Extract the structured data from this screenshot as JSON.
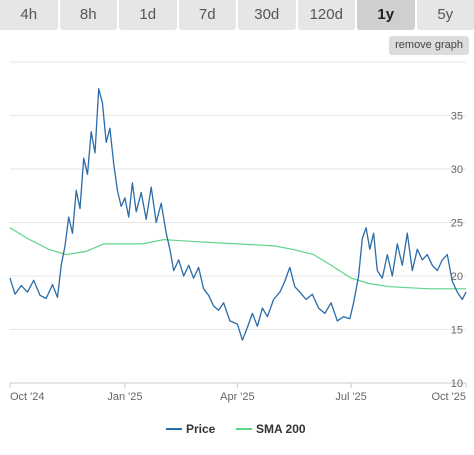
{
  "tabs": [
    {
      "label": "4h",
      "active": false
    },
    {
      "label": "8h",
      "active": false
    },
    {
      "label": "1d",
      "active": false
    },
    {
      "label": "7d",
      "active": false
    },
    {
      "label": "30d",
      "active": false
    },
    {
      "label": "120d",
      "active": false
    },
    {
      "label": "1y",
      "active": true
    },
    {
      "label": "5y",
      "active": false
    }
  ],
  "remove_graph_label": "remove graph",
  "colors": {
    "price": "#2a6ba8",
    "sma": "#5fd48a",
    "grid": "#e6e6e6",
    "axis": "#cccccc"
  },
  "chart_data": {
    "type": "line",
    "title": "",
    "xlabel": "",
    "ylabel": "",
    "ylim": [
      10,
      40
    ],
    "y_ticks": [
      10,
      15,
      20,
      25,
      30,
      35
    ],
    "x_ticks": [
      {
        "label": "Oct '24",
        "date": "2024-10-01"
      },
      {
        "label": "Jan '25",
        "date": "2025-01-01"
      },
      {
        "label": "Apr '25",
        "date": "2025-04-01"
      },
      {
        "label": "Jul '25",
        "date": "2025-07-01"
      },
      {
        "label": "Oct '25",
        "date": "2025-10-01"
      }
    ],
    "x_range": [
      "2024-10-01",
      "2025-10-01"
    ],
    "grid": true,
    "legend_position": "bottom-center",
    "series": [
      {
        "name": "Price",
        "points": [
          [
            "2024-10-01",
            19.8
          ],
          [
            "2024-10-05",
            18.3
          ],
          [
            "2024-10-10",
            19.1
          ],
          [
            "2024-10-15",
            18.5
          ],
          [
            "2024-10-20",
            19.6
          ],
          [
            "2024-10-25",
            18.2
          ],
          [
            "2024-10-30",
            17.9
          ],
          [
            "2024-11-04",
            19.2
          ],
          [
            "2024-11-08",
            18.0
          ],
          [
            "2024-11-11",
            21.0
          ],
          [
            "2024-11-14",
            22.8
          ],
          [
            "2024-11-17",
            25.5
          ],
          [
            "2024-11-20",
            24.0
          ],
          [
            "2024-11-23",
            28.0
          ],
          [
            "2024-11-26",
            26.3
          ],
          [
            "2024-11-29",
            31.0
          ],
          [
            "2024-12-02",
            29.5
          ],
          [
            "2024-12-05",
            33.5
          ],
          [
            "2024-12-08",
            31.5
          ],
          [
            "2024-12-11",
            37.5
          ],
          [
            "2024-12-14",
            36.2
          ],
          [
            "2024-12-17",
            32.5
          ],
          [
            "2024-12-20",
            33.8
          ],
          [
            "2024-12-23",
            30.5
          ],
          [
            "2024-12-26",
            28.0
          ],
          [
            "2024-12-29",
            26.5
          ],
          [
            "2025-01-01",
            27.3
          ],
          [
            "2025-01-04",
            25.5
          ],
          [
            "2025-01-07",
            28.7
          ],
          [
            "2025-01-10",
            26.0
          ],
          [
            "2025-01-14",
            27.8
          ],
          [
            "2025-01-18",
            25.3
          ],
          [
            "2025-01-22",
            28.3
          ],
          [
            "2025-01-26",
            25.0
          ],
          [
            "2025-01-30",
            26.8
          ],
          [
            "2025-02-03",
            24.0
          ],
          [
            "2025-02-06",
            22.5
          ],
          [
            "2025-02-09",
            20.5
          ],
          [
            "2025-02-13",
            21.5
          ],
          [
            "2025-02-17",
            20.0
          ],
          [
            "2025-02-21",
            21.0
          ],
          [
            "2025-02-25",
            19.8
          ],
          [
            "2025-03-01",
            20.8
          ],
          [
            "2025-03-05",
            18.8
          ],
          [
            "2025-03-09",
            18.2
          ],
          [
            "2025-03-13",
            17.2
          ],
          [
            "2025-03-17",
            16.8
          ],
          [
            "2025-03-21",
            17.5
          ],
          [
            "2025-03-26",
            15.8
          ],
          [
            "2025-04-01",
            15.5
          ],
          [
            "2025-04-05",
            14.0
          ],
          [
            "2025-04-09",
            15.2
          ],
          [
            "2025-04-13",
            16.5
          ],
          [
            "2025-04-17",
            15.3
          ],
          [
            "2025-04-21",
            17.0
          ],
          [
            "2025-04-25",
            16.2
          ],
          [
            "2025-04-30",
            17.8
          ],
          [
            "2025-05-05",
            18.5
          ],
          [
            "2025-05-09",
            19.5
          ],
          [
            "2025-05-13",
            20.8
          ],
          [
            "2025-05-17",
            19.0
          ],
          [
            "2025-05-21",
            18.5
          ],
          [
            "2025-05-26",
            17.8
          ],
          [
            "2025-05-31",
            18.3
          ],
          [
            "2025-06-05",
            17.0
          ],
          [
            "2025-06-10",
            16.5
          ],
          [
            "2025-06-15",
            17.5
          ],
          [
            "2025-06-20",
            15.8
          ],
          [
            "2025-06-25",
            16.2
          ],
          [
            "2025-06-30",
            16.0
          ],
          [
            "2025-07-03",
            17.5
          ],
          [
            "2025-07-07",
            20.0
          ],
          [
            "2025-07-10",
            23.5
          ],
          [
            "2025-07-13",
            24.5
          ],
          [
            "2025-07-16",
            22.5
          ],
          [
            "2025-07-19",
            24.0
          ],
          [
            "2025-07-22",
            20.5
          ],
          [
            "2025-07-26",
            19.8
          ],
          [
            "2025-07-30",
            22.0
          ],
          [
            "2025-08-03",
            20.0
          ],
          [
            "2025-08-07",
            23.0
          ],
          [
            "2025-08-11",
            21.0
          ],
          [
            "2025-08-15",
            24.0
          ],
          [
            "2025-08-19",
            20.5
          ],
          [
            "2025-08-23",
            22.5
          ],
          [
            "2025-08-27",
            21.5
          ],
          [
            "2025-08-31",
            22.0
          ],
          [
            "2025-09-04",
            21.0
          ],
          [
            "2025-09-08",
            20.5
          ],
          [
            "2025-09-12",
            21.5
          ],
          [
            "2025-09-16",
            22.0
          ],
          [
            "2025-09-20",
            19.5
          ],
          [
            "2025-09-24",
            18.5
          ],
          [
            "2025-09-28",
            17.8
          ],
          [
            "2025-10-01",
            18.5
          ]
        ]
      },
      {
        "name": "SMA 200",
        "points": [
          [
            "2024-10-01",
            24.5
          ],
          [
            "2024-10-15",
            23.5
          ],
          [
            "2024-11-01",
            22.5
          ],
          [
            "2024-11-15",
            22.0
          ],
          [
            "2024-12-01",
            22.3
          ],
          [
            "2024-12-15",
            23.0
          ],
          [
            "2025-01-01",
            23.0
          ],
          [
            "2025-01-15",
            23.0
          ],
          [
            "2025-02-01",
            23.4
          ],
          [
            "2025-02-15",
            23.3
          ],
          [
            "2025-03-01",
            23.2
          ],
          [
            "2025-04-01",
            23.0
          ],
          [
            "2025-05-01",
            22.8
          ],
          [
            "2025-05-15",
            22.5
          ],
          [
            "2025-06-01",
            22.0
          ],
          [
            "2025-06-15",
            21.0
          ],
          [
            "2025-07-01",
            19.8
          ],
          [
            "2025-07-15",
            19.3
          ],
          [
            "2025-08-01",
            19.0
          ],
          [
            "2025-09-01",
            18.8
          ],
          [
            "2025-10-01",
            18.8
          ]
        ]
      }
    ]
  }
}
